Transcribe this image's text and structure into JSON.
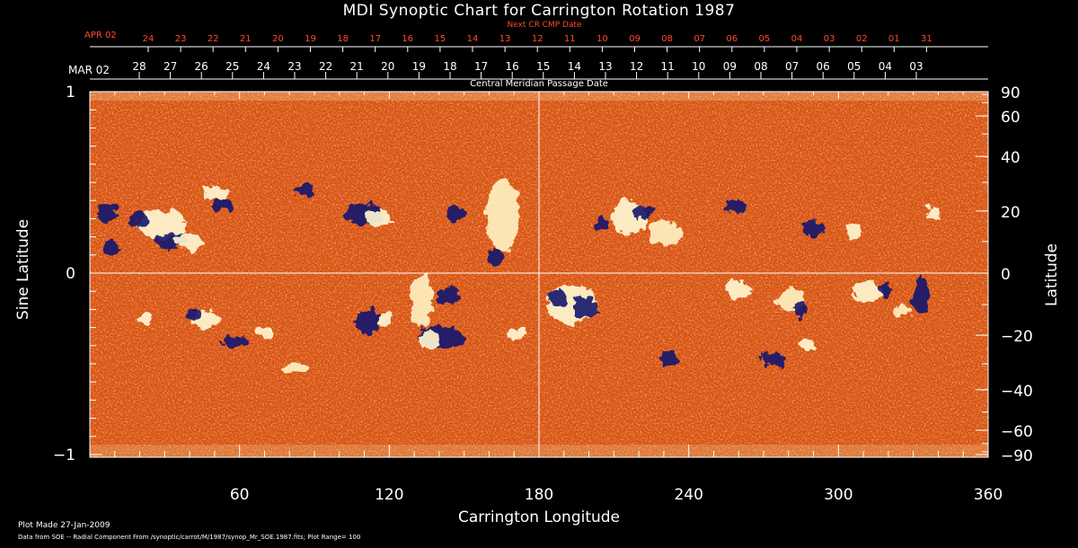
{
  "title": "MDI Synoptic Chart for Carrington Rotation 1987",
  "next_cr_label": "Next CR CMP Date",
  "next_cr_start": "APR 02",
  "next_cr_dates": [
    "24",
    "23",
    "22",
    "21",
    "20",
    "19",
    "18",
    "17",
    "16",
    "15",
    "14",
    "13",
    "12",
    "11",
    "10",
    "09",
    "08",
    "07",
    "06",
    "05",
    "04",
    "03",
    "02",
    "01",
    "31"
  ],
  "cmp_start": "MAR 02",
  "cmp_dates": [
    "28",
    "27",
    "26",
    "25",
    "24",
    "23",
    "22",
    "21",
    "20",
    "19",
    "18",
    "17",
    "16",
    "15",
    "14",
    "13",
    "12",
    "11",
    "10",
    "09",
    "08",
    "07",
    "06",
    "05",
    "04",
    "03"
  ],
  "cmp_label": "Central Meridian Passage Date",
  "left_axis": {
    "label": "Sine Latitude",
    "ticks": [
      "1",
      "0",
      "−1"
    ]
  },
  "right_axis": {
    "label": "Latitude",
    "ticks": [
      "90",
      "60",
      "40",
      "20",
      "0",
      "−20",
      "−40",
      "−60",
      "−90"
    ]
  },
  "x_axis": {
    "label": "Carrington Longitude",
    "ticks": [
      "60",
      "120",
      "180",
      "240",
      "300",
      "360"
    ]
  },
  "footer": {
    "plot_made": "Plot Made 27-Jan-2009",
    "data_from": "Data from SOE -- Radial Component From /synoptic/carrot/M/1987/synop_Mr_SOE.1987.fits; Plot Range= 100"
  },
  "colors": {
    "background": "#000000",
    "base_field": "#e04a08",
    "positive": "#fff2c8",
    "negative": "#2a2a88",
    "axis": "#ffffff",
    "accent_text": "#ff4a2a"
  }
}
